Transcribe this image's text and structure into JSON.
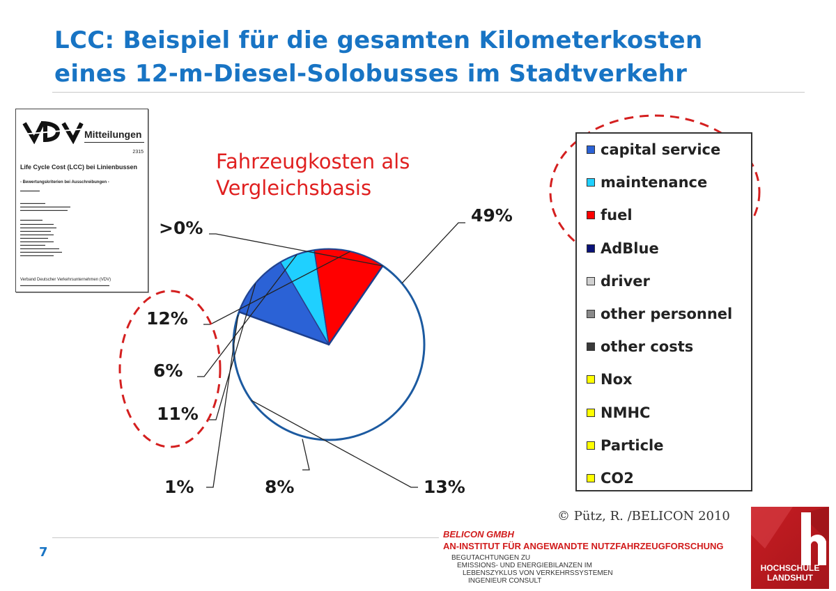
{
  "slide": {
    "title_line1": "LCC: Beispiel für die gesamten Kilometerkosten",
    "title_line2": "eines 12-m-Diesel-Solobusses im Stadtverkehr",
    "subtitle_line1": "Fahrzeugkosten als",
    "subtitle_line2": "Vergleichsbasis",
    "page_number": "7",
    "copyright": "© Pütz, R. /BELICON 2010"
  },
  "document": {
    "logo_text": "VDV",
    "series": "Mitteilungen",
    "number": "2315",
    "title": "Life Cycle Cost (LCC) bei Linienbussen",
    "subtitle": "- Bewertungskriterien bei Ausschreibungen -",
    "footer": "Verband Deutscher Verkehrsunternehmen (VDV)"
  },
  "chart_data": {
    "type": "pie",
    "title": "",
    "slices": [
      {
        "name": "capital service",
        "value": 11,
        "label": "11%",
        "color": "#2b62d6"
      },
      {
        "name": "maintenance",
        "value": 6,
        "label": "6%",
        "color": "#1fd0ff"
      },
      {
        "name": "fuel",
        "value": 12,
        "label": "12%",
        "color": "#ff0000"
      },
      {
        "name": "AdBlue",
        "value": 0,
        "label": ">0%",
        "color": "#0a1278"
      },
      {
        "name": "driver",
        "value": 49,
        "label": "49%",
        "color": "#ffffff"
      },
      {
        "name": "other personnel",
        "value": 13,
        "label": "13%",
        "color": "#ffffff"
      },
      {
        "name": "other costs",
        "value": 8,
        "label": "8%",
        "color": "#ffffff"
      },
      {
        "name": "Nox",
        "value": 1,
        "label": "1%",
        "color": "#ffffff"
      },
      {
        "name": "NMHC",
        "value": 0,
        "label": "",
        "color": "#ffffff"
      },
      {
        "name": "Particle",
        "value": 0,
        "label": "",
        "color": "#ffffff"
      },
      {
        "name": "CO2",
        "value": 0,
        "label": "",
        "color": "#ffffff"
      }
    ],
    "outline_color": "#1c5aa0",
    "legend_position": "right"
  },
  "legend": {
    "items": [
      {
        "label": "capital service",
        "color": "#2b62d6"
      },
      {
        "label": "maintenance",
        "color": "#1fd0ff"
      },
      {
        "label": "fuel",
        "color": "#ff0000"
      },
      {
        "label": "AdBlue",
        "color": "#0a1278"
      },
      {
        "label": "driver",
        "color": "#d0d0d0"
      },
      {
        "label": "other personnel",
        "color": "#8a8a8a"
      },
      {
        "label": "other costs",
        "color": "#3a3a3a"
      },
      {
        "label": "Nox",
        "color": "#ffff00"
      },
      {
        "label": "NMHC",
        "color": "#ffff00"
      },
      {
        "label": "Particle",
        "color": "#ffff00"
      },
      {
        "label": "CO2",
        "color": "#ffff00"
      }
    ]
  },
  "footer": {
    "company": "BELICON GMBH",
    "institute": "AN-INSTITUT FÜR ANGEWANDTE NUTZFAHRZEUGFORSCHUNG",
    "line1": "BEGUTACHTUNGEN ZU",
    "line2": "EMISSIONS- UND ENERGIEBILANZEN IM",
    "line3": "LEBENSZYKLUS VON VERKEHRSSYSTEMEN",
    "line4": "INGENIEUR CONSULT",
    "logo_line1": "HOCHSCHULE",
    "logo_line2": "LANDSHUT"
  }
}
